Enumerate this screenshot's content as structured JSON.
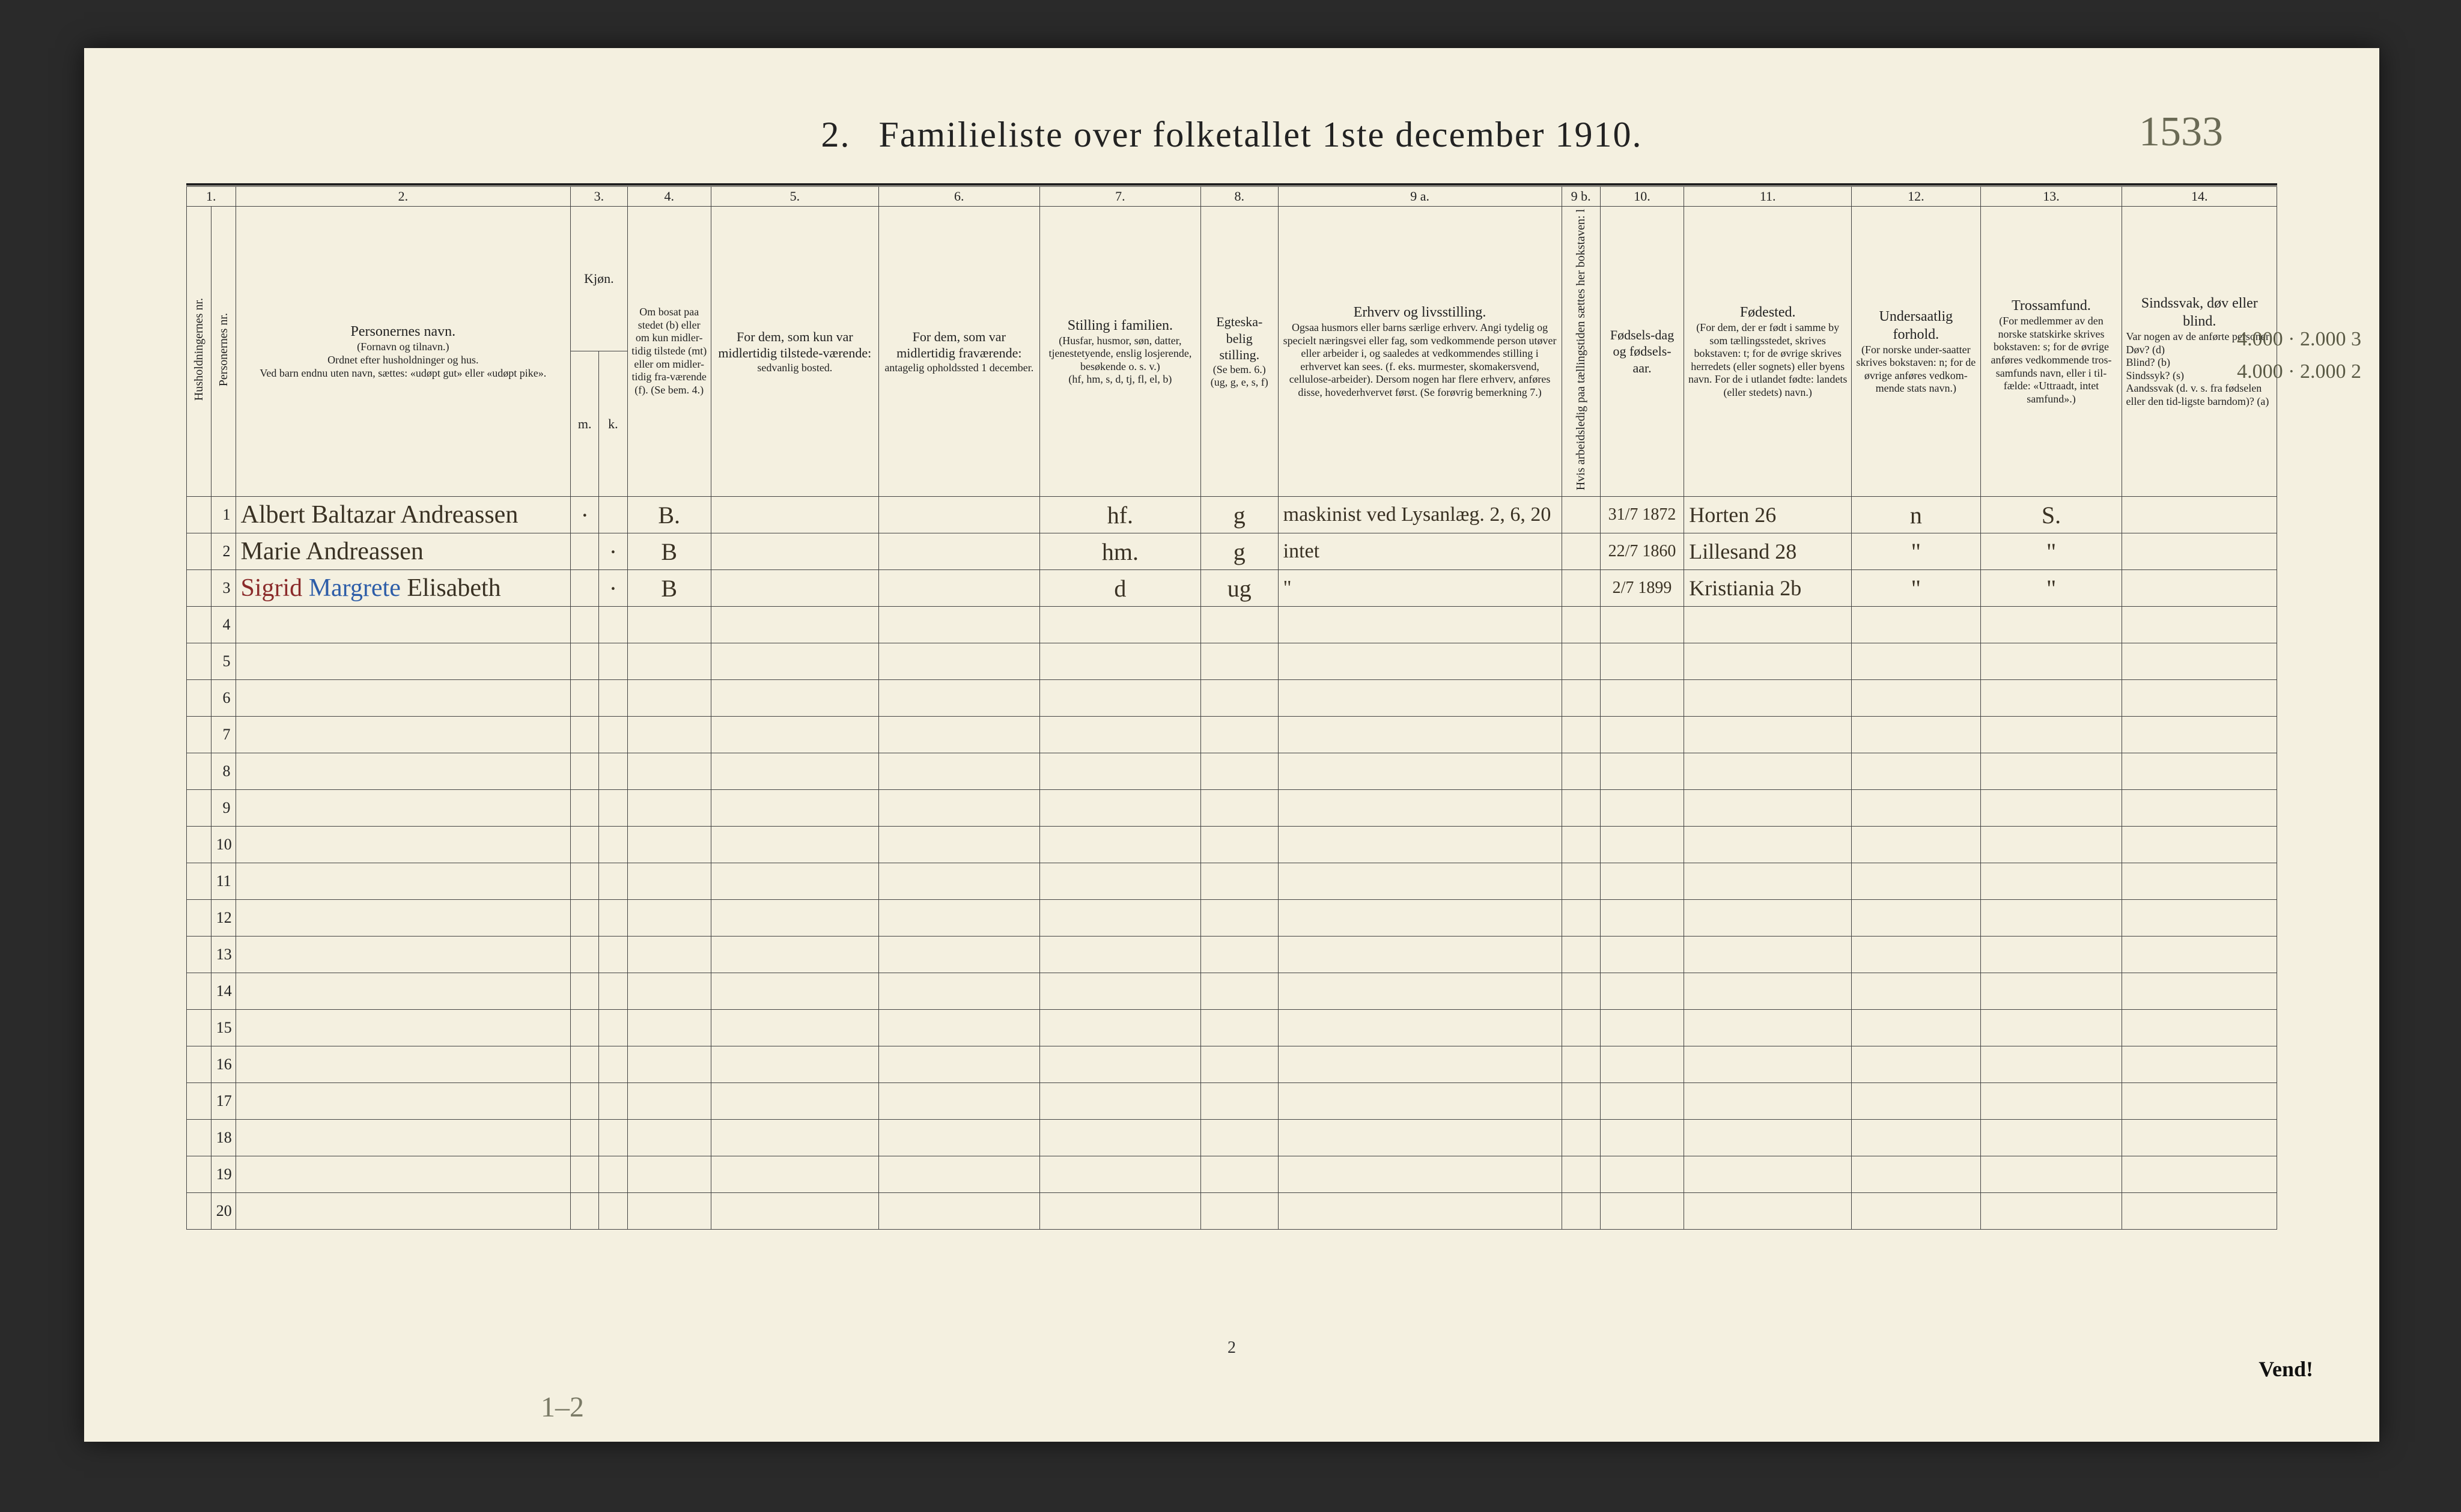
{
  "title_num": "2.",
  "title_text": "Familieliste over folketallet 1ste december 1910.",
  "hand_topright": "1533",
  "page_number": "2",
  "vend": "Vend!",
  "bottom_note": "1–2",
  "margin_notes": [
    "4.000 · 2.000 3",
    "4.000 · 2.000 2"
  ],
  "colnums": [
    "1.",
    "2.",
    "3.",
    "4.",
    "5.",
    "6.",
    "7.",
    "8.",
    "9 a.",
    "9 b.",
    "10.",
    "11.",
    "12.",
    "13.",
    "14."
  ],
  "headers": {
    "c1a": "Husholdningernes nr.",
    "c1b": "Personernes nr.",
    "c2_title": "Personernes navn.",
    "c2_sub": "(Fornavn og tilnavn.)\nOrdnet efter husholdninger og hus.\nVed barn endnu uten navn, sættes: «udøpt gut» eller «udøpt pike».",
    "c3_title": "Kjøn.",
    "c3_m": "m.",
    "c3_k": "k.",
    "c4_title": "Om bosat paa stedet (b) eller om kun midler-tidig tilstede (mt) eller om midler-tidig fra-værende (f). (Se bem. 4.)",
    "c5_title": "For dem, som kun var midlertidig tilstede-værende:",
    "c5_sub": "sedvanlig bosted.",
    "c6_title": "For dem, som var midlertidig fraværende:",
    "c6_sub": "antagelig opholdssted 1 december.",
    "c7_title": "Stilling i familien.",
    "c7_sub": "(Husfar, husmor, søn, datter, tjenestetyende, enslig losjerende, besøkende o. s. v.)\n(hf, hm, s, d, tj, fl, el, b)",
    "c8_title": "Egteska-belig stilling.",
    "c8_sub": "(Se bem. 6.)\n(ug, g, e, s, f)",
    "c9a_title": "Erhverv og livsstilling.",
    "c9a_sub": "Ogsaa husmors eller barns særlige erhverv. Angi tydelig og specielt næringsvei eller fag, som vedkommende person utøver eller arbeider i, og saaledes at vedkommendes stilling i erhvervet kan sees. (f. eks. murmester, skomakersvend, cellulose-arbeider). Dersom nogen har flere erhverv, anføres disse, hovederhvervet først. (Se forøvrig bemerkning 7.)",
    "c9b_title": "Hvis arbeidsledig paa tællingstiden sættes her bokstaven: l",
    "c10_title": "Fødsels-dag og fødsels-aar.",
    "c11_title": "Fødested.",
    "c11_sub": "(For dem, der er født i samme by som tællingsstedet, skrives bokstaven: t; for de øvrige skrives herredets (eller sognets) eller byens navn. For de i utlandet fødte: landets (eller stedets) navn.)",
    "c12_title": "Undersaatlig forhold.",
    "c12_sub": "(For norske under-saatter skrives bokstaven: n; for de øvrige anføres vedkom-mende stats navn.)",
    "c13_title": "Trossamfund.",
    "c13_sub": "(For medlemmer av den norske statskirke skrives bokstaven: s; for de øvrige anføres vedkommende tros-samfunds navn, eller i til-fælde: «Uttraadt, intet samfund».)",
    "c14_title": "Sindssvak, døv eller blind.",
    "c14_sub": "Var nogen av de anførte personer:\nDøv?      (d)\nBlind?    (b)\nSindssyk? (s)\nAandssvak (d. v. s. fra fødselen eller den tid-ligste barndom)? (a)"
  },
  "rows": [
    {
      "num": "1",
      "name": "Albert Baltazar Andreassen",
      "mk": "·",
      "kk": "",
      "bosat": "B.",
      "c5": "",
      "c6": "",
      "stilling": "hf.",
      "egte": "g",
      "erhverv": "maskinist ved Lysanlæg.   2, 6, 20",
      "c9b": "",
      "fodsel": "31/7 1872",
      "fodested": "Horten 26",
      "under": "n",
      "tros": "S.",
      "c14": ""
    },
    {
      "num": "2",
      "name": "Marie Andreassen",
      "mk": "",
      "kk": "·",
      "bosat": "B",
      "c5": "",
      "c6": "",
      "stilling": "hm.",
      "egte": "g",
      "erhverv": "intet",
      "c9b": "",
      "fodsel": "22/7 1860",
      "fodested": "Lillesand 28",
      "under": "\"",
      "tros": "\"",
      "c14": ""
    },
    {
      "num": "3",
      "name": "Sigrid Margrete Elisabeth",
      "mk": "",
      "kk": "·",
      "bosat": "B",
      "c5": "",
      "c6": "",
      "stilling": "d",
      "egte": "ug",
      "erhverv": "\"",
      "c9b": "",
      "fodsel": "2/7 1899",
      "fodested": "Kristiania 2b",
      "under": "\"",
      "tros": "\"",
      "c14": ""
    }
  ],
  "empty_row_nums": [
    "4",
    "5",
    "6",
    "7",
    "8",
    "9",
    "10",
    "11",
    "12",
    "13",
    "14",
    "15",
    "16",
    "17",
    "18",
    "19",
    "20"
  ],
  "colors": {
    "paper": "#f4f0e0",
    "rule": "#444444",
    "ink": "#3a3224",
    "pencil": "#6a6a55",
    "red": "#8a2a2a",
    "blue": "#2d5da8"
  }
}
